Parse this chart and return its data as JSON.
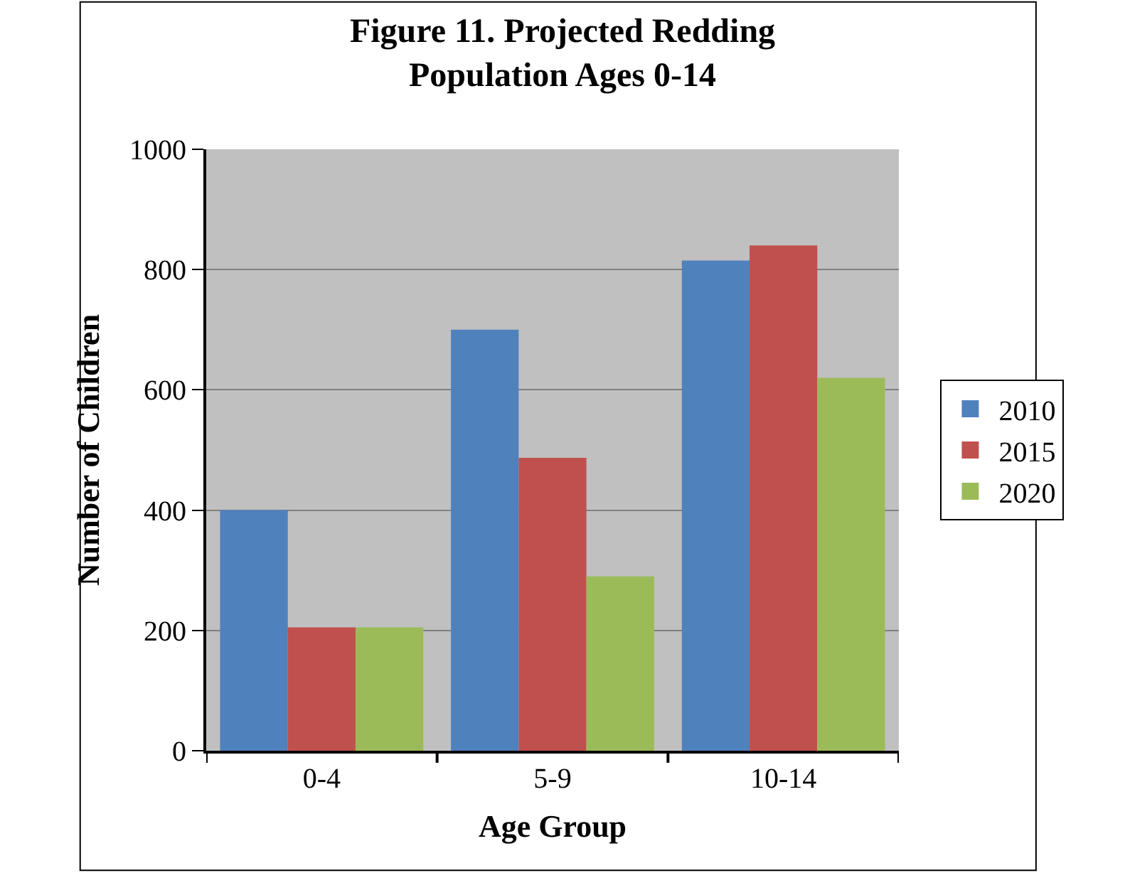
{
  "chart_data": {
    "type": "bar",
    "title": "Figure 11. Projected Redding\nPopulation Ages 0-14",
    "xlabel": "Age Group",
    "ylabel": "Number of Children",
    "categories": [
      "0-4",
      "5-9",
      "10-14"
    ],
    "series": [
      {
        "name": "2010",
        "color": "#4f81bd",
        "values": [
          400,
          700,
          815
        ]
      },
      {
        "name": "2015",
        "color": "#c0504d",
        "values": [
          205,
          487,
          840
        ]
      },
      {
        "name": "2020",
        "color": "#9bbb59",
        "values": [
          205,
          290,
          620
        ]
      }
    ],
    "ylim": [
      0,
      1000
    ],
    "yticks": [
      0,
      200,
      400,
      600,
      800,
      1000
    ],
    "grid": "y",
    "legend": "right"
  }
}
